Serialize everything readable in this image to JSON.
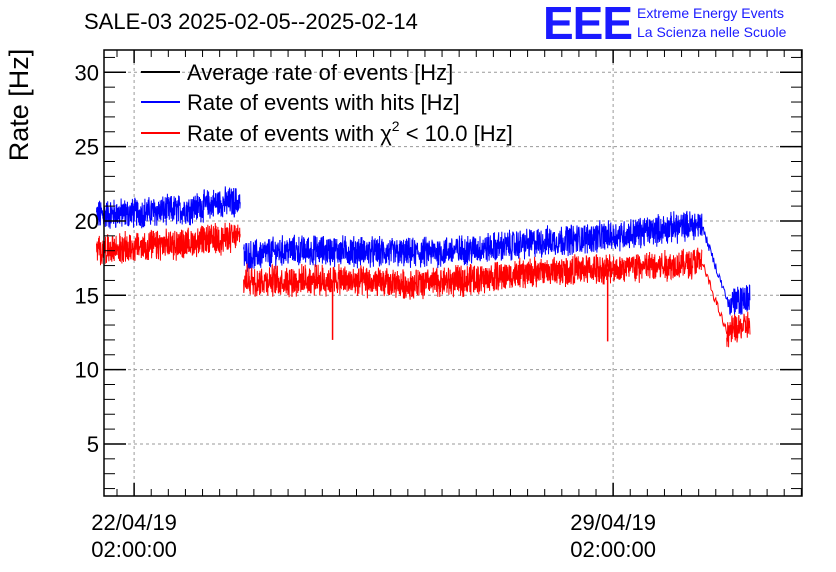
{
  "header": {
    "title": "SALE-03 2025-02-05--2025-02-14",
    "logo_text": "EEE",
    "logo_line1": "Extreme Energy Events",
    "logo_line2": "La Scienza nelle Scuole"
  },
  "colors": {
    "average": "#000000",
    "hits": "#0000ff",
    "chi2": "#ff0000"
  },
  "chart_data": {
    "type": "line",
    "title": "SALE-03 2025-02-05--2025-02-14",
    "xlabel": "",
    "ylabel": "Rate [Hz]",
    "ylim": [
      1.5,
      31.5
    ],
    "xlim_days": [
      -0.44,
      9.76
    ],
    "grid": true,
    "legend_position": "top-left",
    "y_ticks": [
      5,
      10,
      15,
      20,
      25,
      30
    ],
    "x_ticks": [
      {
        "day": 0,
        "date": "22/04/19",
        "time": "02:00:00"
      },
      {
        "day": 7,
        "date": "29/04/19",
        "time": "02:00:00"
      }
    ],
    "legend": [
      {
        "label": "Average rate of events [Hz]",
        "color": "#000000"
      },
      {
        "label": "Rate of events with hits [Hz]",
        "color": "#0000ff"
      },
      {
        "label_prefix": "Rate of events with ",
        "label_chi": "χ",
        "label_sup": "2",
        "label_suffix": " < 10.0 [Hz]",
        "color": "#ff0000"
      }
    ],
    "series": [
      {
        "name": "Rate of events with hits [Hz]",
        "color": "#0000ff",
        "noise": 0.9,
        "segments": [
          {
            "x": [
              -0.55,
              0.2,
              0.8,
              1.2,
              1.55
            ],
            "y": [
              20.4,
              20.6,
              20.8,
              21.2,
              21.3
            ]
          },
          {
            "x": [
              1.6,
              2.2,
              3.0,
              4.0,
              5.0,
              6.0,
              7.0,
              7.8,
              8.3
            ],
            "y": [
              17.6,
              18.0,
              18.0,
              17.8,
              18.1,
              18.6,
              19.0,
              19.5,
              19.8
            ]
          },
          {
            "x": [
              8.3,
              8.68
            ],
            "y": [
              19.6,
              14.5
            ]
          },
          {
            "x": [
              8.68,
              9.0
            ],
            "y": [
              14.5,
              14.8
            ]
          }
        ]
      },
      {
        "name": "Rate of events with chi2 < 10.0 [Hz]",
        "color": "#ff0000",
        "noise": 0.9,
        "segments": [
          {
            "x": [
              -0.55,
              0.2,
              0.8,
              1.2,
              1.55
            ],
            "y": [
              18.0,
              18.3,
              18.5,
              18.8,
              18.9
            ]
          },
          {
            "x": [
              1.6,
              2.2,
              3.0,
              4.0,
              5.0,
              6.0,
              7.0,
              7.8,
              8.3
            ],
            "y": [
              16.0,
              16.0,
              16.0,
              15.7,
              16.1,
              16.6,
              16.8,
              17.0,
              17.3
            ]
          },
          {
            "x": [
              8.3,
              8.66
            ],
            "y": [
              17.2,
              12.5
            ]
          },
          {
            "x": [
              8.66,
              9.0
            ],
            "y": [
              12.5,
              13.0
            ]
          }
        ],
        "spikes": [
          {
            "x": 2.9,
            "y": 12.0
          },
          {
            "x": 6.92,
            "y": 11.9
          }
        ]
      }
    ]
  }
}
